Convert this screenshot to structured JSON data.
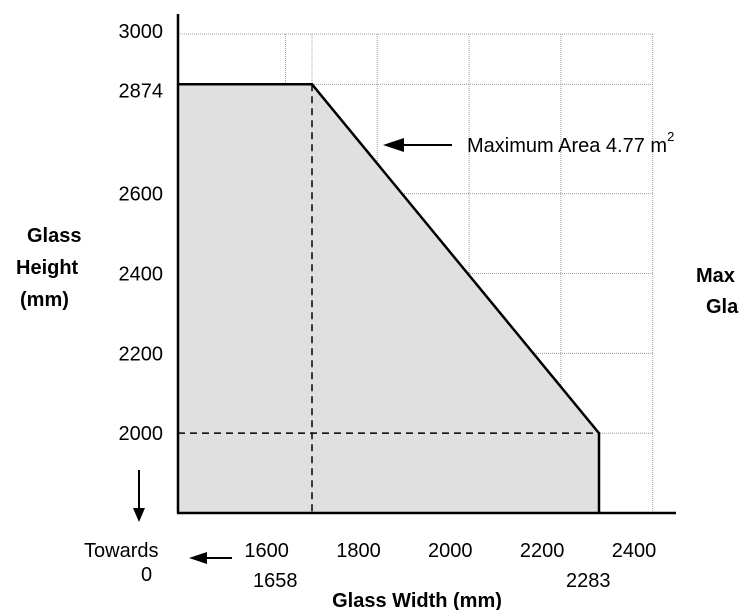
{
  "chart_data": {
    "type": "area",
    "x_axis": {
      "label": "Glass Width (mm)",
      "tick_labels": [
        "1600",
        "1800",
        "2000",
        "2200",
        "2400"
      ],
      "secondary_tick_labels": [
        "1658",
        "2283"
      ],
      "towards_label": "Towards",
      "towards_value": "0",
      "grid": true
    },
    "y_axis": {
      "label_lines": [
        "Glass",
        "Height",
        "(mm)"
      ],
      "tick_labels": [
        "2000",
        "2200",
        "2400",
        "2600",
        "2874",
        "3000"
      ],
      "ylim": [
        1800,
        3000
      ],
      "grid": true
    },
    "boundary": [
      {
        "x": 1658,
        "y": 2874
      },
      {
        "x": 2283,
        "y": 2000
      }
    ],
    "reference_lines": [
      {
        "orientation": "vertical",
        "x": 1658,
        "from_y": 1800,
        "to_y": 2874
      },
      {
        "orientation": "horizontal",
        "y": 2000,
        "from_x": 1658,
        "to_x": 2283
      }
    ],
    "annotation": {
      "text": "Maximum Area 4.77 m",
      "superscript": "2"
    },
    "clipped_text": [
      "Max",
      "Gla"
    ],
    "fill_color": "#e0e0e0",
    "grid_color": "#888888"
  }
}
